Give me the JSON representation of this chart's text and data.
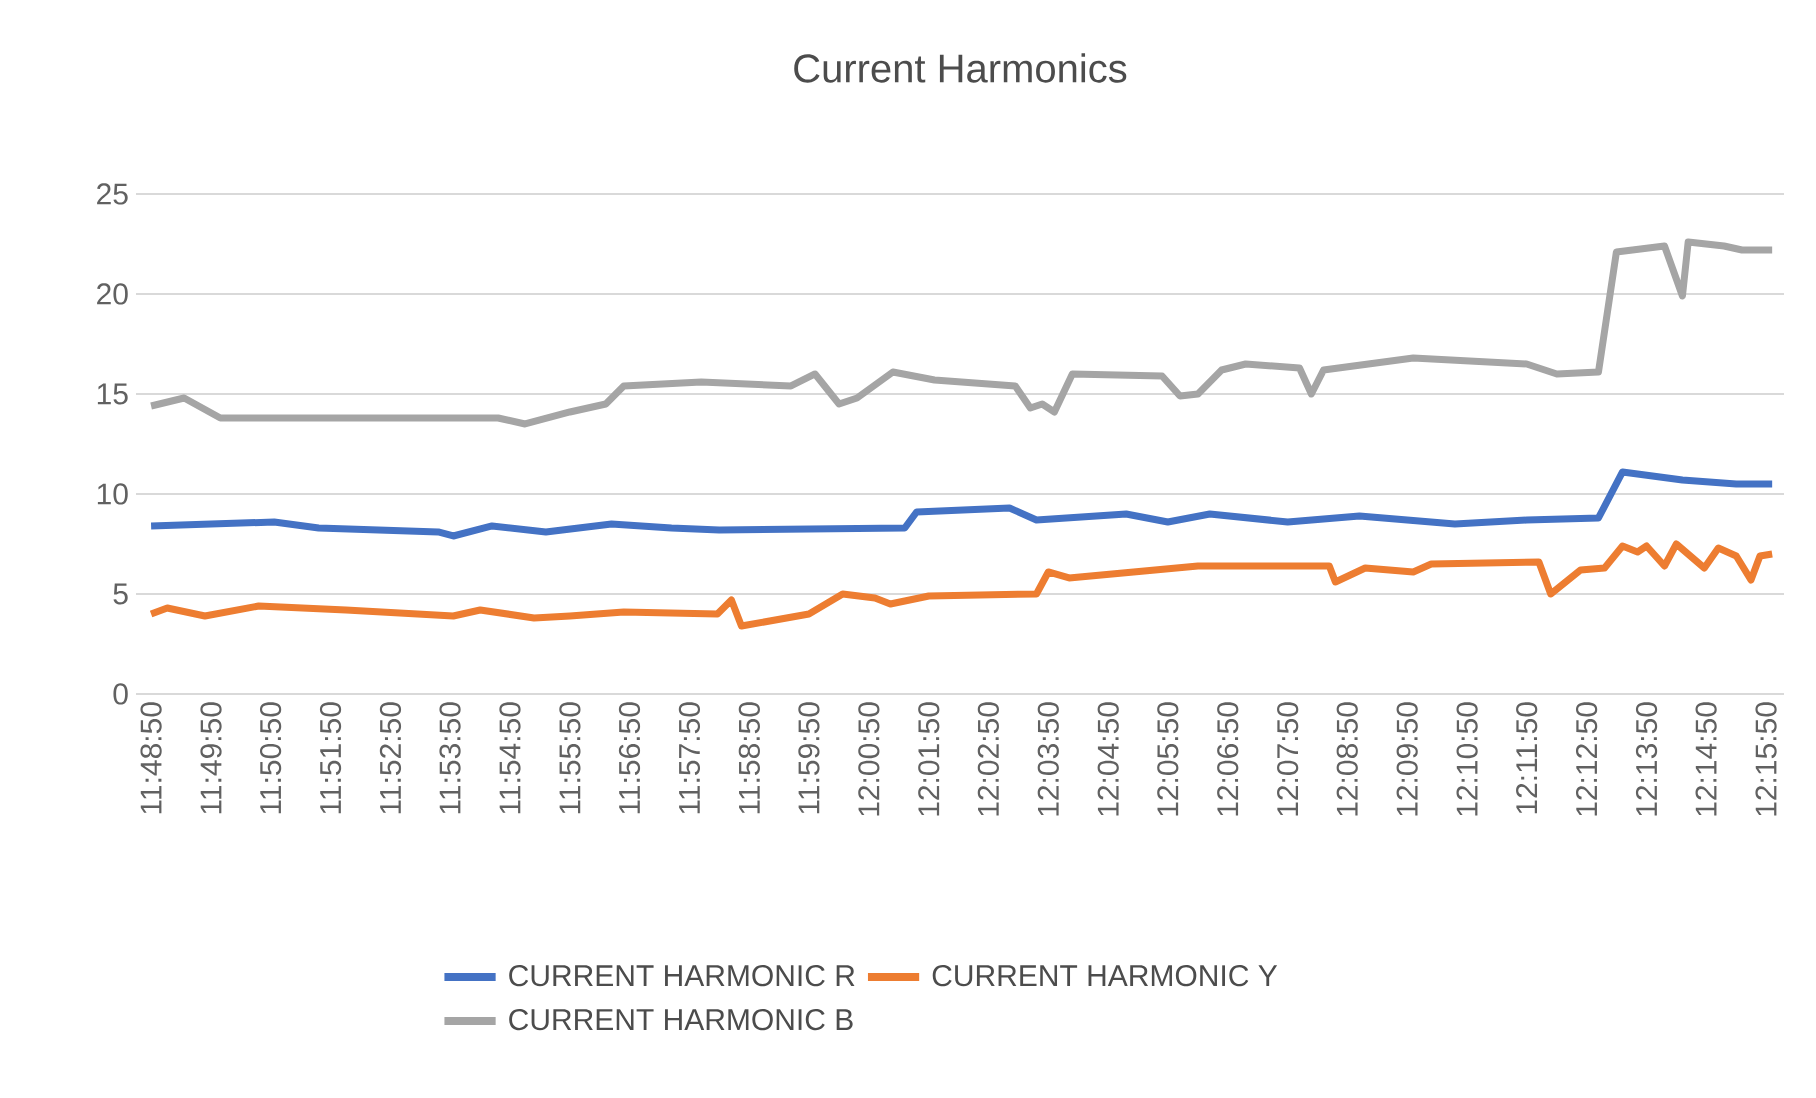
{
  "chart_data": {
    "type": "line",
    "title": "Current  Harmonics",
    "ylim": [
      0,
      25
    ],
    "yticks": [
      0,
      5,
      10,
      15,
      20,
      25
    ],
    "xlim": [
      11.8097,
      12.2689
    ],
    "xticks": [
      {
        "value": 11.8139,
        "label": "11:48:50"
      },
      {
        "value": 11.8306,
        "label": "11:49:50"
      },
      {
        "value": 11.8472,
        "label": "11:50:50"
      },
      {
        "value": 11.8639,
        "label": "11:51:50"
      },
      {
        "value": 11.8806,
        "label": "11:52:50"
      },
      {
        "value": 11.8972,
        "label": "11:53:50"
      },
      {
        "value": 11.9139,
        "label": "11:54:50"
      },
      {
        "value": 11.9306,
        "label": "11:55:50"
      },
      {
        "value": 11.9472,
        "label": "11:56:50"
      },
      {
        "value": 11.9639,
        "label": "11:57:50"
      },
      {
        "value": 11.9806,
        "label": "11:58:50"
      },
      {
        "value": 11.9972,
        "label": "11:59:50"
      },
      {
        "value": 12.0139,
        "label": "12:00:50"
      },
      {
        "value": 12.0306,
        "label": "12:01:50"
      },
      {
        "value": 12.0472,
        "label": "12:02:50"
      },
      {
        "value": 12.0639,
        "label": "12:03:50"
      },
      {
        "value": 12.0806,
        "label": "12:04:50"
      },
      {
        "value": 12.0972,
        "label": "12:05:50"
      },
      {
        "value": 12.1139,
        "label": "12:06:50"
      },
      {
        "value": 12.1306,
        "label": "12:07:50"
      },
      {
        "value": 12.1472,
        "label": "12:08:50"
      },
      {
        "value": 12.1639,
        "label": "12:09:50"
      },
      {
        "value": 12.1806,
        "label": "12:10:50"
      },
      {
        "value": 12.1972,
        "label": "12:11:50"
      },
      {
        "value": 12.2139,
        "label": "12:12:50"
      },
      {
        "value": 12.2306,
        "label": "12:13:50"
      },
      {
        "value": 12.2472,
        "label": "12:14:50"
      },
      {
        "value": 12.2639,
        "label": "12:15:50"
      }
    ],
    "grid": "y",
    "legend": "bottom",
    "line_style": "solid",
    "marker": "none",
    "series": [
      {
        "name": "CURRENT HARMONIC R",
        "color": "#4472c4",
        "x": [
          11.8139,
          11.8482,
          11.8606,
          11.8939,
          11.8981,
          11.9089,
          11.9239,
          11.9422,
          11.9589,
          11.9722,
          12.0239,
          12.0272,
          12.0531,
          12.0606,
          12.0856,
          12.0972,
          12.1089,
          12.1306,
          12.1506,
          12.1772,
          12.1972,
          12.2172,
          12.2239,
          12.2406,
          12.2556,
          12.2656
        ],
        "values": [
          8.4,
          8.6,
          8.3,
          8.1,
          7.9,
          8.4,
          8.1,
          8.5,
          8.3,
          8.2,
          8.3,
          9.1,
          9.3,
          8.7,
          9.0,
          8.6,
          9.0,
          8.6,
          8.9,
          8.5,
          8.7,
          8.8,
          11.1,
          10.7,
          10.5,
          10.5
        ]
      },
      {
        "name": "CURRENT HARMONIC Y",
        "color": "#ed7d31",
        "x": [
          11.8139,
          11.8184,
          11.8289,
          11.8439,
          11.8682,
          11.8981,
          11.9056,
          11.9206,
          11.9306,
          11.9456,
          11.9717,
          11.9756,
          11.9784,
          11.9972,
          12.0066,
          12.0156,
          12.0199,
          12.0306,
          12.0606,
          12.0639,
          12.0697,
          12.1056,
          12.1422,
          12.1439,
          12.1522,
          12.1656,
          12.1706,
          12.2006,
          12.2039,
          12.2122,
          12.2189,
          12.2239,
          12.2281,
          12.2306,
          12.2356,
          12.2389,
          12.2467,
          12.2506,
          12.2556,
          12.2597,
          12.2622,
          12.2656
        ],
        "values": [
          4.0,
          4.3,
          3.9,
          4.4,
          4.2,
          3.9,
          4.2,
          3.8,
          3.9,
          4.1,
          4.0,
          4.7,
          3.4,
          4.0,
          5.0,
          4.8,
          4.5,
          4.9,
          5.0,
          6.1,
          5.8,
          6.4,
          6.4,
          5.6,
          6.3,
          6.1,
          6.5,
          6.6,
          5.0,
          6.2,
          6.3,
          7.4,
          7.1,
          7.4,
          6.4,
          7.5,
          6.3,
          7.3,
          6.9,
          5.7,
          6.9,
          7.0
        ]
      },
      {
        "name": "CURRENT HARMONIC B",
        "color": "#a5a5a5",
        "x": [
          11.8139,
          11.8231,
          11.8332,
          11.9106,
          11.9181,
          11.9306,
          11.9406,
          11.9456,
          11.9672,
          11.9922,
          11.9989,
          12.0056,
          12.0106,
          12.0206,
          12.0322,
          12.0547,
          12.0589,
          12.0622,
          12.0656,
          12.0706,
          12.0956,
          12.1006,
          12.1056,
          12.1122,
          12.1189,
          12.1339,
          12.1372,
          12.1406,
          12.1656,
          12.1972,
          12.2056,
          12.2172,
          12.2222,
          12.2356,
          12.2406,
          12.2422,
          12.2522,
          12.2572,
          12.2656
        ],
        "values": [
          14.4,
          14.8,
          13.8,
          13.8,
          13.5,
          14.1,
          14.5,
          15.4,
          15.6,
          15.4,
          16.0,
          14.5,
          14.8,
          16.1,
          15.7,
          15.4,
          14.3,
          14.5,
          14.1,
          16.0,
          15.9,
          14.9,
          15.0,
          16.2,
          16.5,
          16.3,
          15.0,
          16.2,
          16.8,
          16.5,
          16.0,
          16.1,
          22.1,
          22.4,
          19.9,
          22.6,
          22.4,
          22.2,
          22.2
        ]
      }
    ]
  }
}
